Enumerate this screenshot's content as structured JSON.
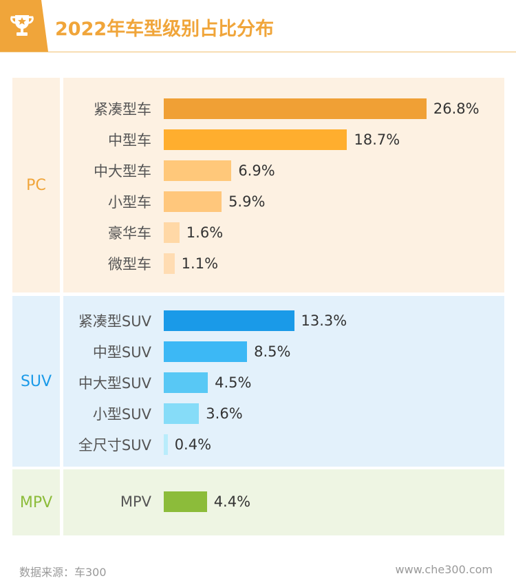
{
  "header": {
    "title": "2022年车型级别占比分布",
    "icon": "trophy-icon"
  },
  "chart_data": {
    "type": "bar",
    "orientation": "horizontal",
    "title": "2022年车型级别占比分布",
    "unit": "%",
    "groups": [
      {
        "name": "PC",
        "color": "#f0a53a",
        "background": "#fdf1e2",
        "items": [
          {
            "label": "紧凑型车",
            "value": 26.8,
            "display": "26.8%",
            "color": "#f0a035"
          },
          {
            "label": "中型车",
            "value": 18.7,
            "display": "18.7%",
            "color": "#ffae2e"
          },
          {
            "label": "中大型车",
            "value": 6.9,
            "display": "6.9%",
            "color": "#ffc87a"
          },
          {
            "label": "小型车",
            "value": 5.9,
            "display": "5.9%",
            "color": "#ffc77c"
          },
          {
            "label": "豪华车",
            "value": 1.6,
            "display": "1.6%",
            "color": "#ffd8a6"
          },
          {
            "label": "微型车",
            "value": 1.1,
            "display": "1.1%",
            "color": "#ffdcb2"
          }
        ]
      },
      {
        "name": "SUV",
        "color": "#1a9ae8",
        "background": "#e3f1fb",
        "items": [
          {
            "label": "紧凑型SUV",
            "value": 13.3,
            "display": "13.3%",
            "color": "#1a9ae8"
          },
          {
            "label": "中型SUV",
            "value": 8.5,
            "display": "8.5%",
            "color": "#3cb8f5"
          },
          {
            "label": "中大型SUV",
            "value": 4.5,
            "display": "4.5%",
            "color": "#58c8f5"
          },
          {
            "label": "小型SUV",
            "value": 3.6,
            "display": "3.6%",
            "color": "#86dcf8"
          },
          {
            "label": "全尺寸SUV",
            "value": 0.4,
            "display": "0.4%",
            "color": "#b9ecfb"
          }
        ]
      },
      {
        "name": "MPV",
        "color": "#8cbc3a",
        "background": "#eef5e3",
        "items": [
          {
            "label": "MPV",
            "value": 4.4,
            "display": "4.4%",
            "color": "#8cbc3a"
          }
        ]
      }
    ]
  },
  "footer": {
    "source": "数据来源：车300",
    "site": "www.che300.com"
  }
}
